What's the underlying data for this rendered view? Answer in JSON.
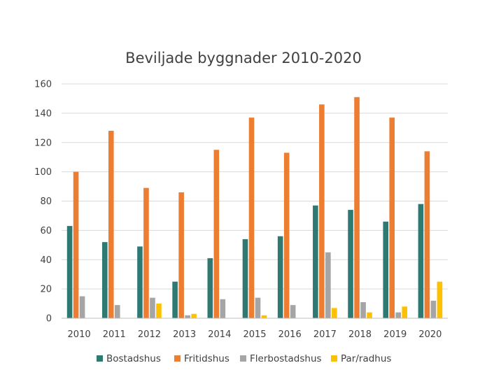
{
  "chart_data": {
    "type": "bar",
    "title": "Beviljade byggnader 2010-2020",
    "xlabel": "",
    "ylabel": "",
    "categories": [
      "2010",
      "2011",
      "2012",
      "2013",
      "2014",
      "2015",
      "2016",
      "2017",
      "2018",
      "2019",
      "2020"
    ],
    "ylim": [
      0,
      160
    ],
    "yticks": [
      0,
      20,
      40,
      60,
      80,
      100,
      120,
      140,
      160
    ],
    "grid": true,
    "legend_position": "bottom",
    "series": [
      {
        "name": "Bostadshus",
        "color": "#2e7a72",
        "values": [
          63,
          52,
          49,
          25,
          41,
          54,
          56,
          77,
          74,
          66,
          78
        ]
      },
      {
        "name": "Fritidshus",
        "color": "#ed7d31",
        "values": [
          100,
          128,
          89,
          86,
          115,
          137,
          113,
          146,
          151,
          137,
          114
        ]
      },
      {
        "name": "Flerbostadshus",
        "color": "#a5a5a5",
        "values": [
          15,
          9,
          14,
          2,
          13,
          14,
          9,
          45,
          11,
          4,
          12
        ]
      },
      {
        "name": "Par/radhus",
        "color": "#ffc000",
        "values": [
          0,
          0,
          10,
          3,
          0,
          2,
          0,
          7,
          4,
          8,
          25
        ]
      }
    ]
  }
}
